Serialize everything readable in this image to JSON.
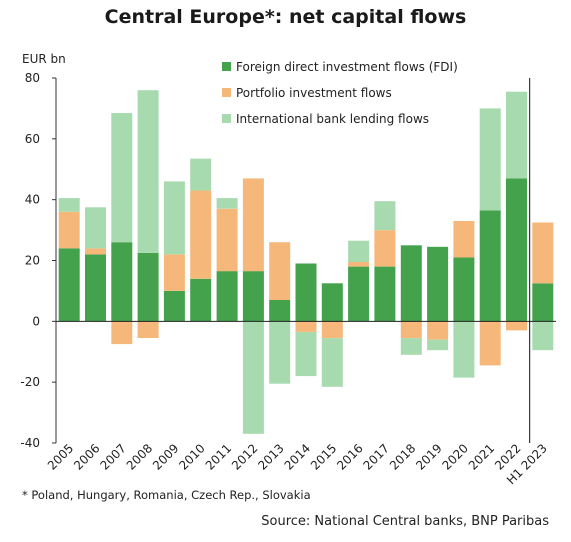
{
  "chart_data": {
    "type": "bar",
    "stacked": true,
    "title": "Central Europe*: net capital flows",
    "ylabel": "EUR bn",
    "ylim": [
      -40,
      80
    ],
    "yticks": [
      -40,
      -20,
      0,
      20,
      40,
      60,
      80
    ],
    "categories": [
      "2005",
      "2006",
      "2007",
      "2008",
      "2009",
      "2010",
      "2011",
      "2012",
      "2013",
      "2014",
      "2015",
      "2016",
      "2017",
      "2018",
      "2019",
      "2020",
      "2021",
      "2022",
      "H1 2023"
    ],
    "series": [
      {
        "name": "Foreign direct investment flows (FDI)",
        "color": "#44a24d",
        "values": [
          24,
          22,
          26,
          22.5,
          10,
          14,
          16.5,
          16.5,
          7,
          19,
          12.5,
          18,
          18,
          25,
          24.5,
          21,
          36.5,
          47,
          12.5
        ]
      },
      {
        "name": "Portfolio investment flows",
        "color": "#f5b87a",
        "values": [
          12,
          2,
          -7.5,
          -5.5,
          12,
          29,
          20.5,
          30.5,
          19,
          -3.5,
          -5.5,
          1.5,
          12,
          -5.5,
          -6,
          12,
          -14.5,
          -3,
          20
        ]
      },
      {
        "name": "International bank lending flows",
        "color": "#a8dab0",
        "values": [
          4.5,
          13.5,
          42.5,
          53.5,
          24,
          10.5,
          3.5,
          -37,
          -20.5,
          -14.5,
          -16,
          7,
          9.5,
          -5.5,
          -3.5,
          -18.5,
          33.5,
          28.5,
          -9.5
        ]
      }
    ],
    "legend_position": "top-right",
    "grid": false,
    "divider_before": "H1 2023"
  },
  "footnote": "* Poland, Hungary, Romania, Czech Rep., Slovakia",
  "source": "Source: National Central banks, BNP Paribas"
}
